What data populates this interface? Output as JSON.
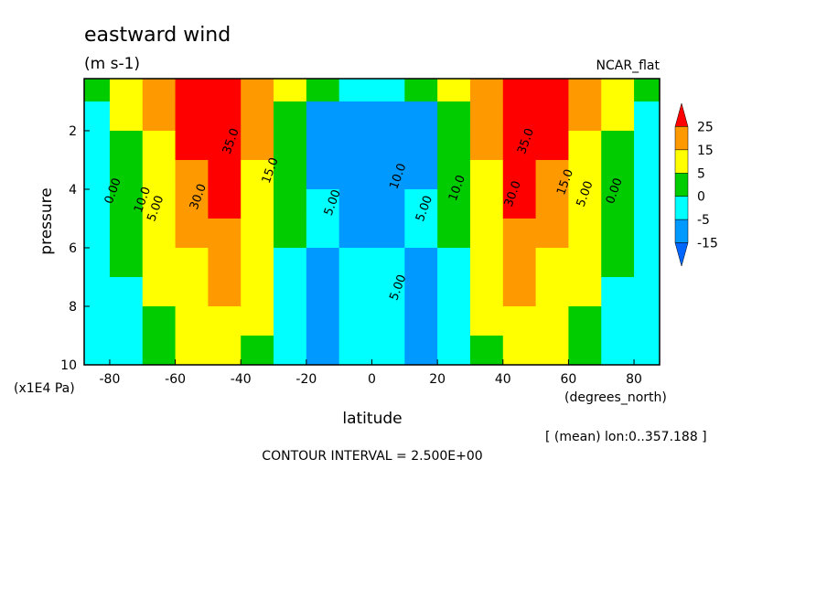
{
  "chart_data": {
    "type": "contour",
    "title": "eastward wind",
    "subtitle": "(m s-1)",
    "colormap_name": "NCAR_flat",
    "x_label": "latitude",
    "x_unit": "(degrees_north)",
    "y_label": "pressure",
    "y_unit": "(x1E4 Pa)",
    "footnote": "[ (mean) lon:0..357.188 ]",
    "contour_interval": "CONTOUR INTERVAL = 2.500E+00",
    "xlim": [
      -87.8,
      87.8
    ],
    "ylim": [
      10,
      0.22
    ],
    "xticks": [
      -80,
      -60,
      -40,
      -20,
      0,
      20,
      40,
      60,
      80
    ],
    "yticks": [
      2,
      4,
      6,
      8,
      10
    ],
    "x": [
      -85,
      -75,
      -65,
      -55,
      -45,
      -35,
      -25,
      -15,
      -5,
      5,
      15,
      25,
      35,
      45,
      55,
      65,
      75,
      85
    ],
    "y": [
      0.5,
      1.5,
      2.5,
      3.5,
      4.5,
      5.5,
      6.5,
      7.5,
      8.5,
      9.5
    ],
    "z": [
      [
        3,
        12,
        22,
        30,
        28,
        20,
        8,
        0,
        -3,
        -3,
        0,
        8,
        20,
        28,
        30,
        22,
        12,
        3
      ],
      [
        -1,
        5,
        18,
        30,
        32,
        18,
        3,
        -8,
        -12,
        -12,
        -8,
        3,
        18,
        32,
        30,
        18,
        5,
        -1
      ],
      [
        -2,
        3,
        14,
        28,
        32,
        16,
        2,
        -8,
        -14,
        -14,
        -8,
        2,
        16,
        32,
        28,
        14,
        3,
        -2
      ],
      [
        -2,
        2,
        12,
        24,
        30,
        14,
        1,
        -6,
        -10,
        -10,
        -6,
        1,
        14,
        30,
        24,
        12,
        2,
        -2
      ],
      [
        -2,
        1,
        10,
        20,
        26,
        12,
        1,
        -5,
        -7,
        -7,
        -5,
        1,
        12,
        26,
        20,
        10,
        1,
        -2
      ],
      [
        -2,
        1,
        8,
        16,
        22,
        10,
        0,
        -4,
        -6,
        -6,
        -4,
        0,
        10,
        22,
        16,
        8,
        1,
        -2
      ],
      [
        -3,
        0,
        6,
        14,
        18,
        8,
        -2,
        -6,
        -5,
        -5,
        -6,
        -2,
        8,
        18,
        14,
        6,
        0,
        -3
      ],
      [
        -4,
        -1,
        5,
        12,
        16,
        6,
        -3,
        -8,
        -4,
        -4,
        -8,
        -3,
        6,
        16,
        12,
        5,
        -1,
        -4
      ],
      [
        -4,
        -1,
        4,
        11,
        14,
        5,
        -3,
        -9,
        -3,
        -3,
        -9,
        -3,
        5,
        14,
        11,
        4,
        -1,
        -4
      ],
      [
        -4,
        -1,
        3,
        10,
        12,
        4,
        -3,
        -9,
        -3,
        -3,
        -9,
        -3,
        4,
        12,
        10,
        3,
        -1,
        -4
      ]
    ],
    "colorbar": {
      "bounds": [
        25,
        15,
        5,
        0,
        -5,
        -15
      ],
      "colors": [
        "#ff0000",
        "#ff9900",
        "#ffff00",
        "#00cc00",
        "#00ffff",
        "#0099ff",
        "#0066ff"
      ]
    },
    "contour_labels": [
      {
        "value": 35,
        "label": "35.0",
        "x": -42,
        "y": 2.4
      },
      {
        "value": 35,
        "label": "35.0",
        "x": 48,
        "y": 2.4
      },
      {
        "value": 30,
        "label": "30.0",
        "x": -52,
        "y": 4.3
      },
      {
        "value": 30,
        "label": "30.0",
        "x": 44,
        "y": 4.2
      },
      {
        "value": 15,
        "label": "15.0",
        "x": -30,
        "y": 3.4
      },
      {
        "value": 15,
        "label": "15.0",
        "x": 60,
        "y": 3.8
      },
      {
        "value": 10,
        "label": "10.0",
        "x": -69,
        "y": 4.4
      },
      {
        "value": 10,
        "label": "10.0",
        "x": 27,
        "y": 4.0
      },
      {
        "value": 5,
        "label": "5.00",
        "x": -65,
        "y": 4.7
      },
      {
        "value": 5,
        "label": "5.00",
        "x": 66,
        "y": 4.2
      },
      {
        "value": 0,
        "label": "0.00",
        "x": -78,
        "y": 4.1
      },
      {
        "value": 0,
        "label": "0.00",
        "x": 75,
        "y": 4.1
      },
      {
        "value": 10,
        "label": "10.0",
        "x": 9,
        "y": 3.6
      },
      {
        "value": 5,
        "label": "5.00",
        "x": -11,
        "y": 4.5
      },
      {
        "value": 5,
        "label": "5.00",
        "x": 17,
        "y": 4.7
      },
      {
        "value": 5,
        "label": "5.00",
        "x": 9,
        "y": 7.4
      }
    ]
  }
}
